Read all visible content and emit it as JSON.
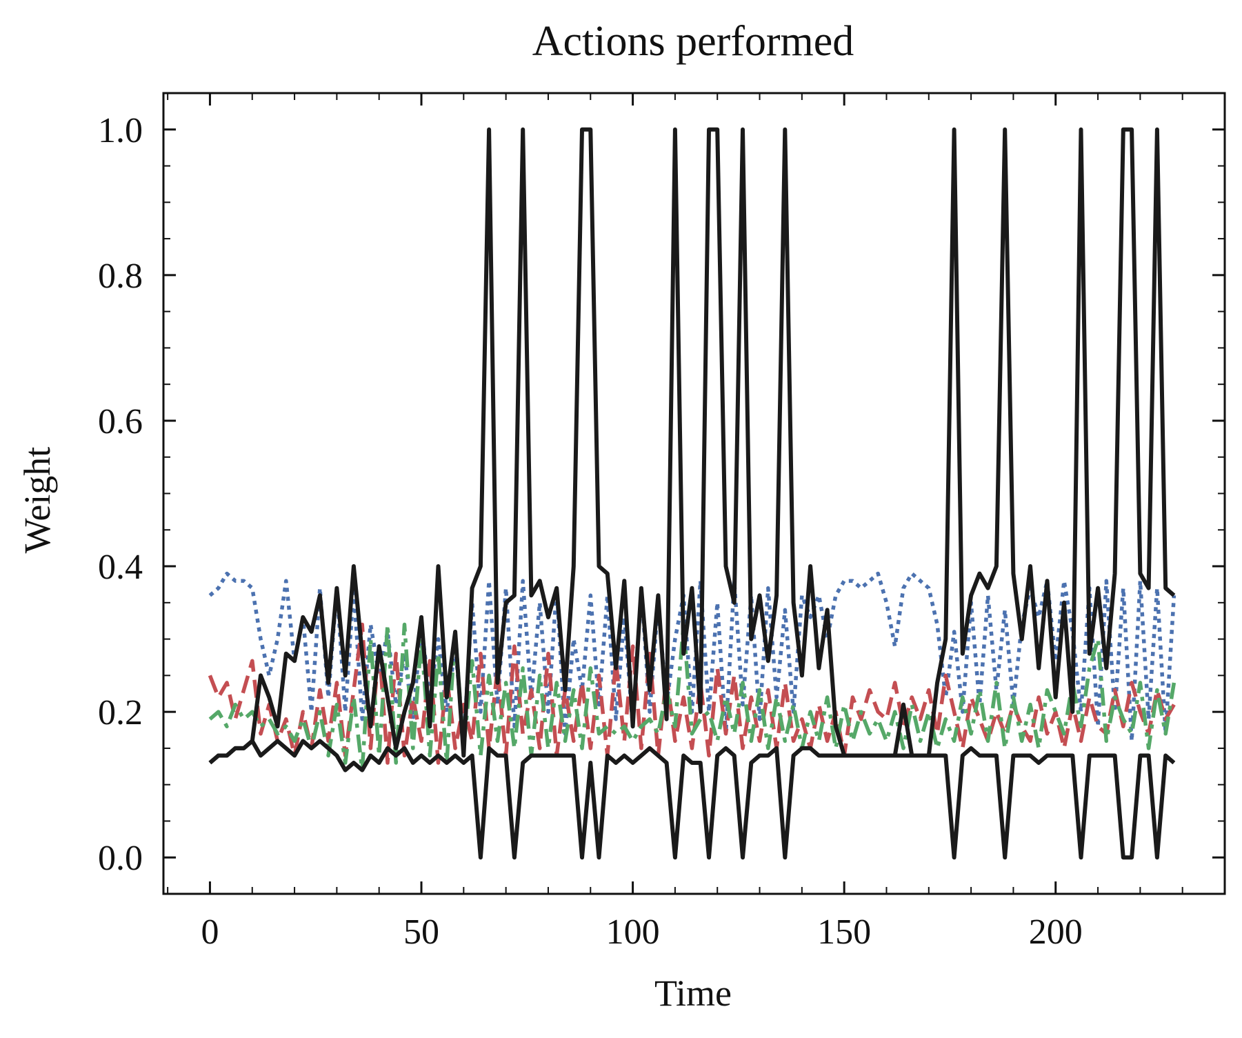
{
  "chart_data": {
    "type": "line",
    "title": "Actions performed",
    "xlabel": "Time",
    "ylabel": "Weight",
    "xlim": [
      -11,
      240
    ],
    "ylim": [
      -0.05,
      1.05
    ],
    "xticks": [
      0,
      50,
      100,
      150,
      200
    ],
    "xtick_labels": [
      "0",
      "50",
      "100",
      "150",
      "200"
    ],
    "yticks": [
      0.0,
      0.2,
      0.4,
      0.6,
      0.8,
      1.0
    ],
    "ytick_labels": [
      "0.0",
      "0.2",
      "0.4",
      "0.6",
      "0.8",
      "1.0"
    ],
    "grid": false,
    "legend": "none",
    "x": [
      0,
      2,
      4,
      6,
      8,
      10,
      12,
      14,
      16,
      18,
      20,
      22,
      24,
      26,
      28,
      30,
      32,
      34,
      36,
      38,
      40,
      42,
      44,
      46,
      48,
      50,
      52,
      54,
      56,
      58,
      60,
      62,
      64,
      66,
      68,
      70,
      72,
      74,
      76,
      78,
      80,
      82,
      84,
      86,
      88,
      90,
      92,
      94,
      96,
      98,
      100,
      102,
      104,
      106,
      108,
      110,
      112,
      114,
      116,
      118,
      120,
      122,
      124,
      126,
      128,
      130,
      132,
      134,
      136,
      138,
      140,
      142,
      144,
      146,
      148,
      150,
      152,
      154,
      156,
      158,
      160,
      162,
      164,
      166,
      168,
      170,
      172,
      174,
      176,
      178,
      180,
      182,
      184,
      186,
      188,
      190,
      192,
      194,
      196,
      198,
      200,
      202,
      204,
      206,
      208,
      210,
      212,
      214,
      216,
      218,
      220,
      222,
      224,
      226,
      228
    ],
    "series": [
      {
        "color": "#4c72b0",
        "style": "dotted",
        "values": [
          0.36,
          0.37,
          0.39,
          0.38,
          0.38,
          0.37,
          0.3,
          0.25,
          0.3,
          0.38,
          0.27,
          0.33,
          0.2,
          0.37,
          0.22,
          0.37,
          0.2,
          0.37,
          0.19,
          0.32,
          0.25,
          0.31,
          0.21,
          0.28,
          0.19,
          0.32,
          0.22,
          0.3,
          0.2,
          0.29,
          0.16,
          0.35,
          0.2,
          0.38,
          0.21,
          0.37,
          0.18,
          0.38,
          0.22,
          0.35,
          0.2,
          0.37,
          0.17,
          0.3,
          0.23,
          0.36,
          0.21,
          0.36,
          0.19,
          0.33,
          0.18,
          0.37,
          0.2,
          0.35,
          0.21,
          0.3,
          0.36,
          0.2,
          0.38,
          0.2,
          0.35,
          0.17,
          0.38,
          0.21,
          0.36,
          0.19,
          0.37,
          0.22,
          0.34,
          0.2,
          0.36,
          0.33,
          0.36,
          0.3,
          0.36,
          0.38,
          0.38,
          0.37,
          0.38,
          0.39,
          0.35,
          0.29,
          0.37,
          0.39,
          0.38,
          0.37,
          0.32,
          0.22,
          0.31,
          0.2,
          0.35,
          0.21,
          0.36,
          0.23,
          0.34,
          0.21,
          0.32,
          0.37,
          0.33,
          0.38,
          0.27,
          0.38,
          0.31,
          0.2,
          0.37,
          0.18,
          0.38,
          0.2,
          0.37,
          0.16,
          0.38,
          0.19,
          0.37,
          0.17,
          0.36
        ]
      },
      {
        "color": "#c44e52",
        "style": "dashed",
        "values": [
          0.25,
          0.22,
          0.24,
          0.19,
          0.23,
          0.27,
          0.17,
          0.21,
          0.16,
          0.19,
          0.14,
          0.2,
          0.15,
          0.23,
          0.16,
          0.24,
          0.14,
          0.23,
          0.32,
          0.15,
          0.29,
          0.13,
          0.28,
          0.14,
          0.22,
          0.16,
          0.27,
          0.13,
          0.25,
          0.15,
          0.21,
          0.16,
          0.28,
          0.15,
          0.26,
          0.14,
          0.29,
          0.17,
          0.23,
          0.15,
          0.28,
          0.14,
          0.23,
          0.16,
          0.24,
          0.15,
          0.25,
          0.14,
          0.27,
          0.16,
          0.29,
          0.15,
          0.28,
          0.14,
          0.25,
          0.16,
          0.22,
          0.15,
          0.24,
          0.14,
          0.26,
          0.17,
          0.25,
          0.15,
          0.22,
          0.16,
          0.23,
          0.15,
          0.24,
          0.16,
          0.19,
          0.15,
          0.21,
          0.16,
          0.2,
          0.14,
          0.22,
          0.19,
          0.23,
          0.2,
          0.19,
          0.24,
          0.18,
          0.22,
          0.19,
          0.23,
          0.17,
          0.25,
          0.2,
          0.15,
          0.22,
          0.19,
          0.16,
          0.2,
          0.17,
          0.21,
          0.18,
          0.16,
          0.22,
          0.17,
          0.2,
          0.15,
          0.21,
          0.16,
          0.22,
          0.18,
          0.17,
          0.23,
          0.18,
          0.24,
          0.2,
          0.17,
          0.23,
          0.19,
          0.21
        ]
      },
      {
        "color": "#55a868",
        "style": "dashdot",
        "values": [
          0.19,
          0.2,
          0.18,
          0.21,
          0.19,
          0.2,
          0.18,
          0.19,
          0.17,
          0.18,
          0.16,
          0.19,
          0.15,
          0.2,
          0.14,
          0.21,
          0.13,
          0.22,
          0.12,
          0.3,
          0.14,
          0.32,
          0.13,
          0.32,
          0.15,
          0.3,
          0.14,
          0.28,
          0.13,
          0.31,
          0.15,
          0.27,
          0.14,
          0.25,
          0.16,
          0.24,
          0.15,
          0.26,
          0.14,
          0.25,
          0.15,
          0.24,
          0.16,
          0.23,
          0.15,
          0.26,
          0.17,
          0.18,
          0.17,
          0.18,
          0.16,
          0.18,
          0.19,
          0.17,
          0.23,
          0.18,
          0.32,
          0.17,
          0.19,
          0.2,
          0.16,
          0.22,
          0.17,
          0.24,
          0.16,
          0.23,
          0.15,
          0.22,
          0.16,
          0.21,
          0.15,
          0.2,
          0.16,
          0.22,
          0.15,
          0.21,
          0.16,
          0.2,
          0.17,
          0.19,
          0.16,
          0.2,
          0.15,
          0.21,
          0.16,
          0.2,
          0.15,
          0.19,
          0.16,
          0.22,
          0.17,
          0.23,
          0.16,
          0.24,
          0.15,
          0.22,
          0.16,
          0.21,
          0.15,
          0.23,
          0.2,
          0.17,
          0.24,
          0.18,
          0.26,
          0.3,
          0.16,
          0.22,
          0.19,
          0.17,
          0.24,
          0.15,
          0.23,
          0.17,
          0.24
        ]
      },
      {
        "color": "#1a1a1a",
        "style": "solid",
        "values": [
          0.13,
          0.14,
          0.14,
          0.15,
          0.15,
          0.16,
          0.14,
          0.15,
          0.16,
          0.15,
          0.14,
          0.16,
          0.15,
          0.16,
          0.15,
          0.14,
          0.12,
          0.13,
          0.12,
          0.14,
          0.13,
          0.15,
          0.14,
          0.15,
          0.13,
          0.14,
          0.13,
          0.14,
          0.13,
          0.14,
          0.13,
          0.14,
          0.0,
          0.15,
          0.14,
          0.14,
          0.0,
          0.13,
          0.14,
          0.14,
          0.14,
          0.14,
          0.14,
          0.14,
          0.0,
          0.13,
          0.0,
          0.14,
          0.13,
          0.14,
          0.13,
          0.14,
          0.15,
          0.14,
          0.13,
          0.0,
          0.14,
          0.13,
          0.13,
          0.0,
          0.14,
          0.15,
          0.14,
          0.0,
          0.13,
          0.14,
          0.14,
          0.15,
          0.0,
          0.14,
          0.15,
          0.15,
          0.14,
          0.14,
          0.14,
          0.14,
          0.14,
          0.14,
          0.14,
          0.14,
          0.14,
          0.14,
          0.14,
          0.14,
          0.14,
          0.14,
          0.14,
          0.14,
          0.0,
          0.14,
          0.15,
          0.14,
          0.14,
          0.14,
          0.0,
          0.14,
          0.14,
          0.14,
          0.13,
          0.14,
          0.14,
          0.14,
          0.14,
          0.0,
          0.14,
          0.14,
          0.14,
          0.14,
          0.0,
          0.0,
          0.14,
          0.14,
          0.0,
          0.14,
          0.13
        ]
      },
      {
        "color": "#1a1a1a",
        "style": "solid",
        "values": [
          0.13,
          0.14,
          0.14,
          0.15,
          0.15,
          0.16,
          0.25,
          0.22,
          0.18,
          0.28,
          0.27,
          0.33,
          0.31,
          0.36,
          0.24,
          0.37,
          0.25,
          0.4,
          0.28,
          0.18,
          0.29,
          0.22,
          0.15,
          0.2,
          0.24,
          0.33,
          0.18,
          0.4,
          0.22,
          0.31,
          0.14,
          0.37,
          0.4,
          1.0,
          0.24,
          0.35,
          0.36,
          1.0,
          0.36,
          0.38,
          0.33,
          0.37,
          0.23,
          0.4,
          1.0,
          1.0,
          0.4,
          0.39,
          0.26,
          0.38,
          0.18,
          0.37,
          0.23,
          0.36,
          0.19,
          1.0,
          0.28,
          0.37,
          0.2,
          1.0,
          1.0,
          0.4,
          0.35,
          1.0,
          0.3,
          0.36,
          0.27,
          0.36,
          1.0,
          0.35,
          0.25,
          0.4,
          0.26,
          0.34,
          0.18,
          0.14,
          0.14,
          0.14,
          0.14,
          0.14,
          0.14,
          0.14,
          0.21,
          0.14,
          0.14,
          0.14,
          0.24,
          0.3,
          1.0,
          0.28,
          0.36,
          0.39,
          0.37,
          0.4,
          1.0,
          0.39,
          0.3,
          0.4,
          0.26,
          0.38,
          0.22,
          0.35,
          0.2,
          1.0,
          0.28,
          0.37,
          0.26,
          0.39,
          1.0,
          1.0,
          0.39,
          0.37,
          1.0,
          0.37,
          0.36
        ]
      }
    ]
  }
}
